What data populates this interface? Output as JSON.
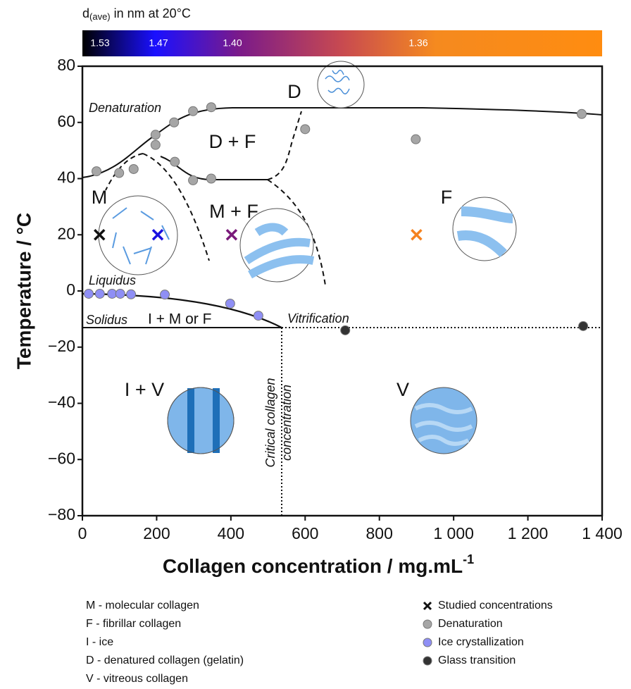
{
  "chart_data": {
    "type": "scatter",
    "colorbar": {
      "title": [
        "d",
        "(ave)",
        " in nm at 20°C"
      ],
      "ticks": [
        1.53,
        1.47,
        {
          "value": 1.4,
          "label": "1.40"
        },
        1.36
      ],
      "colors": [
        "#000000",
        "#1a10ff",
        "#7a1a8a",
        "#c84a50",
        "#f58a1f",
        "#ff8c10"
      ]
    },
    "xlabel": "Collagen concentration / mg.mL",
    "xlabel_sup": "-1",
    "ylabel": "Temperature / °C",
    "xlim": [
      0,
      1400
    ],
    "ylim": [
      -80,
      80
    ],
    "xticks": [
      0,
      200,
      400,
      600,
      800,
      {
        "value": 1000,
        "label": "1 000"
      },
      {
        "value": 1200,
        "label": "1 200"
      },
      {
        "value": 1400,
        "label": "1 400"
      }
    ],
    "yticks": [
      {
        "value": -80,
        "label": "−80"
      },
      {
        "value": -60,
        "label": "−60"
      },
      {
        "value": -40,
        "label": "−40"
      },
      {
        "value": -20,
        "label": "−20"
      },
      0,
      20,
      40,
      60,
      80
    ],
    "regions": [
      "D",
      "D + F",
      "M",
      "M + F",
      "F",
      "I + M or F",
      "I + V",
      "V"
    ],
    "annotations": [
      "Denaturation",
      "Liquidus",
      "Solidus",
      "Vitrification",
      "Critical collagen",
      "concentration"
    ],
    "series": [
      {
        "name": "Studied concentrations",
        "marker": "x",
        "color": "#111111",
        "colors": [
          "#111111",
          "#1a10e0",
          "#7a1a7a",
          "#f5821f"
        ],
        "x": [
          46,
          203,
          402,
          900
        ],
        "values": [
          20,
          20,
          20,
          20
        ]
      },
      {
        "name": "Denaturation",
        "marker": "o",
        "color": "#a6a6a6",
        "x": [
          38,
          99,
          138,
          197,
          197,
          247,
          249,
          298,
          298,
          347,
          347,
          600,
          898,
          1345
        ],
        "values": [
          42.6,
          42,
          43.4,
          52,
          55.6,
          60,
          46,
          64,
          39.4,
          65.4,
          40,
          57.6,
          54,
          63
        ]
      },
      {
        "name": "Ice crystallization",
        "marker": "o",
        "color": "#8f8ff5",
        "x": [
          17,
          47,
          80,
          102,
          131,
          222,
          398,
          474
        ],
        "values": [
          -1,
          -1,
          -1,
          -1,
          -1.2,
          -1.3,
          -4.5,
          -8.8
        ]
      },
      {
        "name": "Glass transition",
        "marker": "o",
        "color": "#333333",
        "x": [
          708,
          1349
        ],
        "values": [
          -14,
          -12.5
        ]
      }
    ],
    "abbreviations": [
      "M - molecular collagen",
      "F - fibrillar collagen",
      "I - ice",
      "D - denatured collagen (gelatin)",
      "V - vitreous collagen"
    ]
  }
}
